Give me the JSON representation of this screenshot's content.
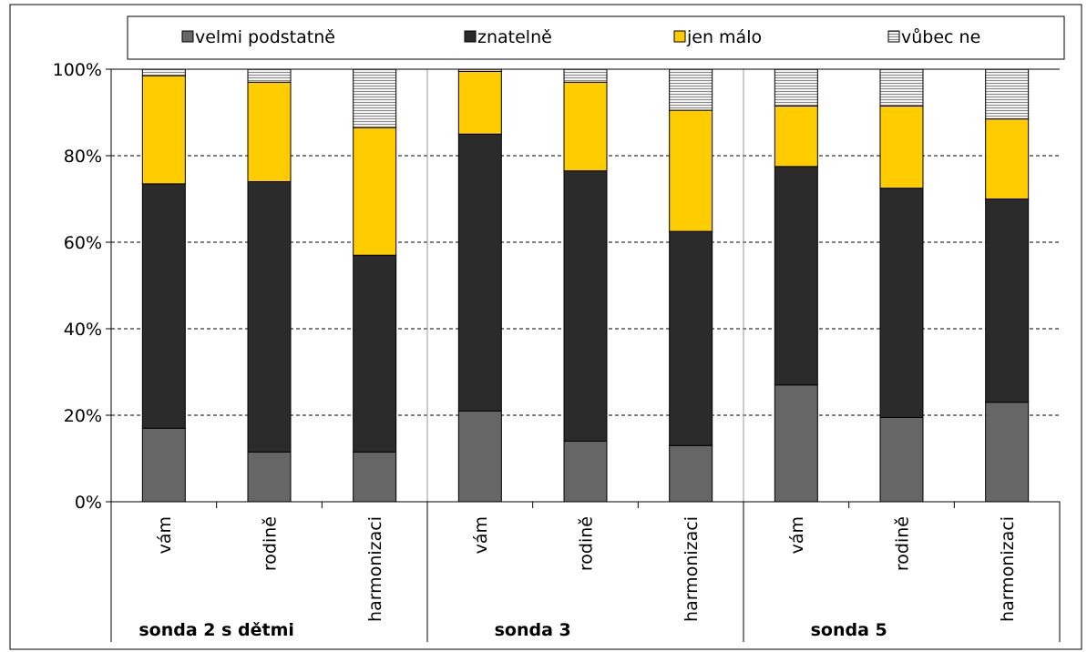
{
  "chart_data": {
    "type": "bar",
    "stacked": true,
    "percent": true,
    "title": "",
    "xlabel": "",
    "ylabel": "",
    "ylim": [
      0,
      100
    ],
    "y_ticks": [
      "0%",
      "20%",
      "40%",
      "60%",
      "80%",
      "100%"
    ],
    "grid": "horizontal dashed",
    "legend_position": "top",
    "groups": [
      {
        "label": "sonda 2 s dětmi",
        "categories": [
          "vám",
          "rodině",
          "harmonizaci"
        ]
      },
      {
        "label": "sonda 3",
        "categories": [
          "vám",
          "rodině",
          "harmonizaci"
        ]
      },
      {
        "label": "sonda 5",
        "categories": [
          "vám",
          "rodině",
          "harmonizaci"
        ]
      }
    ],
    "categories": [
      "vám",
      "rodině",
      "harmonizaci",
      "vám",
      "rodině",
      "harmonizaci",
      "vám",
      "rodině",
      "harmonizaci"
    ],
    "series": [
      {
        "name": "velmi podstatně",
        "color": "#666666",
        "values": [
          17,
          11.5,
          11.5,
          21,
          14,
          13,
          27,
          19.5,
          23
        ]
      },
      {
        "name": "znatelně",
        "color": "#2b2b2b",
        "values": [
          56.5,
          62.5,
          45.5,
          64,
          62.5,
          49.5,
          50.5,
          53,
          47
        ]
      },
      {
        "name": "jen málo",
        "color": "#ffcc00",
        "values": [
          25,
          23,
          29.5,
          14.5,
          20.5,
          28,
          14,
          19,
          18.5
        ]
      },
      {
        "name": "vůbec ne",
        "color": "#d8d8d8",
        "values": [
          1.5,
          3,
          13.5,
          0.5,
          3,
          9.5,
          8.5,
          8.5,
          11.5
        ]
      }
    ]
  }
}
